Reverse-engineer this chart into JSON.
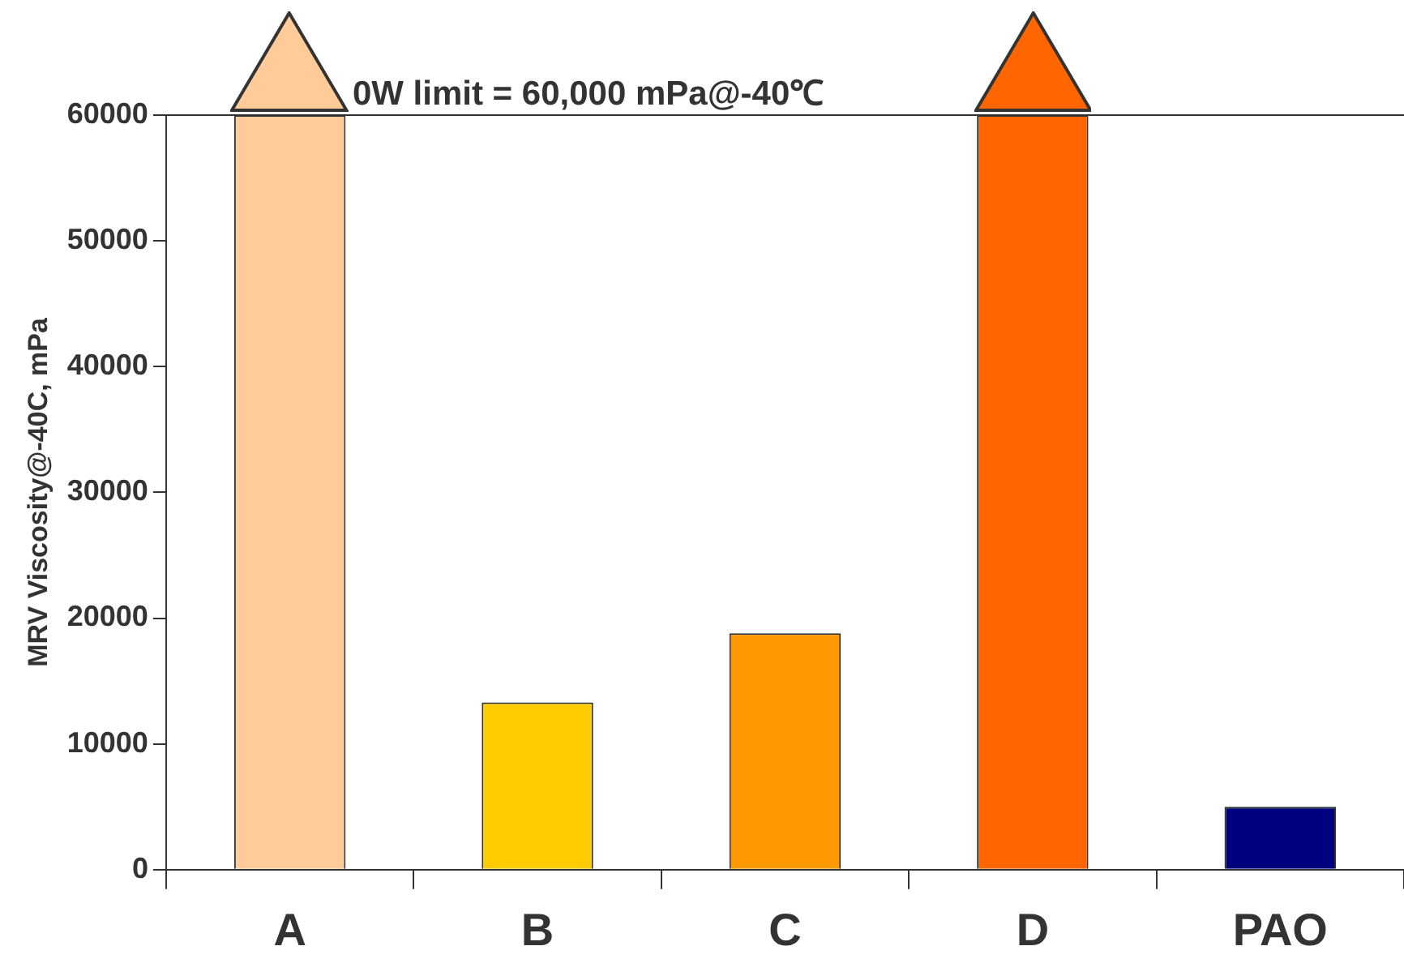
{
  "chart_data": {
    "type": "bar",
    "ylabel": "MRV Viscosity@-40C, mPa",
    "categories": [
      "A",
      "B",
      "C",
      "D",
      "PAO"
    ],
    "values": [
      60000,
      13300,
      18800,
      60000,
      5000
    ],
    "colors": [
      "#ffcc99",
      "#ffcc00",
      "#ff9900",
      "#ff6600",
      "#000080"
    ],
    "ylim": [
      0,
      60000
    ],
    "yticks": [
      0,
      10000,
      20000,
      30000,
      40000,
      50000,
      60000
    ],
    "ref_lines": [
      {
        "axis": "y",
        "value": 60000,
        "label": "0W limit = 60,000 mPa@-40℃",
        "color": "#333333"
      }
    ],
    "grid": false,
    "legend": false
  }
}
